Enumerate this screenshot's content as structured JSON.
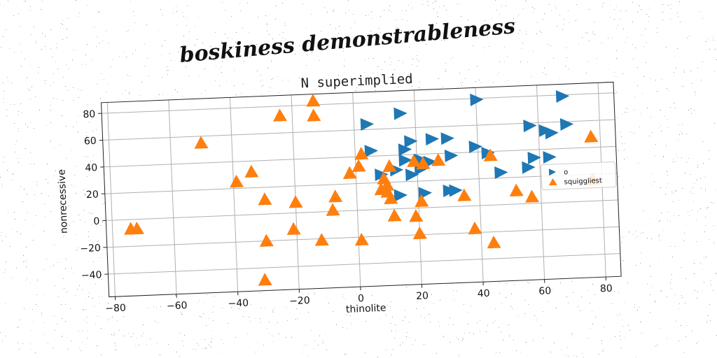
{
  "figure": {
    "suptitle": "boskiness demonstrableness"
  },
  "colors": {
    "series_o": "#1f77b4",
    "series_squiggliest": "#ff7f0e",
    "grid": "#b0b0b0",
    "noise": "#777777"
  },
  "chart_data": {
    "type": "scatter",
    "title": "N superimplied",
    "xlabel": "thinolite",
    "ylabel": "nonrecessive",
    "xlim": [
      -82,
      85
    ],
    "ylim": [
      -57,
      88
    ],
    "xticks": [
      -80,
      -60,
      -40,
      -20,
      0,
      20,
      40,
      60,
      80
    ],
    "yticks": [
      -40,
      -20,
      0,
      20,
      40,
      60,
      80
    ],
    "xtick_labels": [
      "−80",
      "−60",
      "−40",
      "−20",
      "0",
      "20",
      "40",
      "60",
      "80"
    ],
    "ytick_labels": [
      "−40",
      "−20",
      "0",
      "20",
      "40",
      "60",
      "80"
    ],
    "grid": true,
    "legend_position": "center-right",
    "series": [
      {
        "name": "o",
        "marker": "triangle-right",
        "color": "#1f77b4",
        "points": [
          [
            4,
            64
          ],
          [
            15,
            71
          ],
          [
            40,
            79
          ],
          [
            68,
            79
          ],
          [
            5,
            44
          ],
          [
            16,
            44
          ],
          [
            18,
            50
          ],
          [
            25,
            51
          ],
          [
            30,
            51
          ],
          [
            16,
            36
          ],
          [
            21,
            36
          ],
          [
            24,
            34
          ],
          [
            31,
            38
          ],
          [
            39,
            44
          ],
          [
            43,
            39
          ],
          [
            57,
            58
          ],
          [
            62,
            54
          ],
          [
            64,
            52
          ],
          [
            69,
            58
          ],
          [
            58,
            34
          ],
          [
            8,
            26
          ],
          [
            13,
            29
          ],
          [
            21,
            29
          ],
          [
            18,
            25
          ],
          [
            22,
            11
          ],
          [
            30,
            12
          ],
          [
            32,
            12
          ],
          [
            14,
            10
          ],
          [
            47,
            24
          ],
          [
            56,
            27
          ],
          [
            63,
            34
          ]
        ]
      },
      {
        "name": "squiggliest",
        "marker": "triangle-up",
        "color": "#ff7f0e",
        "points": [
          [
            -13,
            83
          ],
          [
            -13,
            72
          ],
          [
            -24,
            73
          ],
          [
            -50,
            55
          ],
          [
            -39,
            25
          ],
          [
            -34,
            32
          ],
          [
            -30,
            11
          ],
          [
            -20,
            8
          ],
          [
            -74,
            -7
          ],
          [
            -72,
            -7
          ],
          [
            -21,
            -12
          ],
          [
            -30,
            -20
          ],
          [
            -12,
            -21
          ],
          [
            -7,
            11
          ],
          [
            -8,
            1
          ],
          [
            -2,
            28
          ],
          [
            1,
            33
          ],
          [
            2,
            42
          ],
          [
            11,
            32
          ],
          [
            19,
            35
          ],
          [
            22,
            33
          ],
          [
            27,
            35
          ],
          [
            44,
            37
          ],
          [
            77,
            48
          ],
          [
            77,
            16
          ],
          [
            8,
            15
          ],
          [
            9,
            23
          ],
          [
            10,
            18
          ],
          [
            10,
            13
          ],
          [
            11,
            8
          ],
          [
            12,
            -5
          ],
          [
            19,
            -6
          ],
          [
            20,
            -19
          ],
          [
            21,
            5
          ],
          [
            35,
            8
          ],
          [
            38,
            -17
          ],
          [
            44,
            -28
          ],
          [
            52,
            10
          ],
          [
            57,
            5
          ],
          [
            1,
            -22
          ],
          [
            -31,
            -49
          ]
        ]
      }
    ]
  }
}
